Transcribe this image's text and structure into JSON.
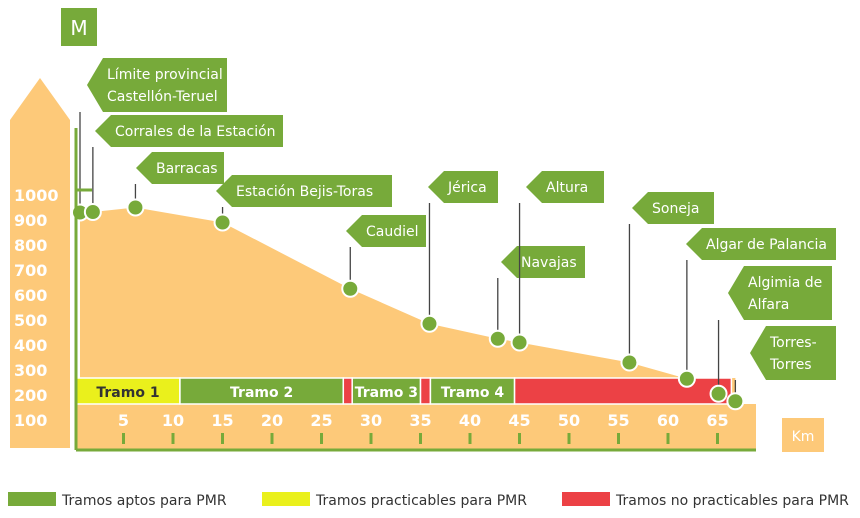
{
  "colors": {
    "profile": "#fdc979",
    "green": "#77aa3a",
    "yellow": "#eaf01c",
    "red": "#ec4145",
    "white": "#ffffff"
  },
  "y_unit": "M",
  "x_unit": "Km",
  "legend": [
    {
      "label": "Tramos aptos para PMR",
      "color": "#77aa3a"
    },
    {
      "label": "Tramos practicables para PMR",
      "color": "#eaf01c"
    },
    {
      "label": "Tramos no practicables para PMR",
      "color": "#ec4145"
    }
  ],
  "chart_data": {
    "type": "area",
    "title": "",
    "xlabel": "Km",
    "ylabel": "M",
    "x_ticks": [
      5,
      10,
      15,
      20,
      25,
      30,
      35,
      40,
      45,
      50,
      55,
      60,
      65
    ],
    "y_ticks": [
      100,
      200,
      300,
      400,
      500,
      600,
      700,
      800,
      900,
      1000
    ],
    "xlim": [
      0,
      67
    ],
    "ylim": [
      0,
      1100
    ],
    "grid": false,
    "legend_position": "bottom",
    "profile": [
      {
        "x": 0,
        "y": 930
      },
      {
        "x": 1.3,
        "y": 932
      },
      {
        "x": 5.6,
        "y": 950
      },
      {
        "x": 14.4,
        "y": 890
      },
      {
        "x": 27.3,
        "y": 625
      },
      {
        "x": 35.3,
        "y": 485
      },
      {
        "x": 42.2,
        "y": 425
      },
      {
        "x": 44.4,
        "y": 410
      },
      {
        "x": 55.5,
        "y": 330
      },
      {
        "x": 61.3,
        "y": 265
      },
      {
        "x": 64.5,
        "y": 205
      },
      {
        "x": 66.2,
        "y": 175
      }
    ],
    "stations": [
      {
        "name": "Límite provincial\nCastellón-Teruel",
        "x": 0,
        "y": 930
      },
      {
        "name": "Corrales de la Estación",
        "x": 1.3,
        "y": 932
      },
      {
        "name": "Barracas",
        "x": 5.6,
        "y": 950
      },
      {
        "name": "Estación Bejis-Toras",
        "x": 14.4,
        "y": 890
      },
      {
        "name": "Caudiel",
        "x": 27.3,
        "y": 625
      },
      {
        "name": "Jérica",
        "x": 35.3,
        "y": 485
      },
      {
        "name": "Navajas",
        "x": 42.2,
        "y": 425
      },
      {
        "name": "Altura",
        "x": 44.4,
        "y": 410
      },
      {
        "name": "Soneja",
        "x": 55.5,
        "y": 330
      },
      {
        "name": "Algar de Palancia",
        "x": 61.3,
        "y": 265
      },
      {
        "name": "Algimia de\nAlfara",
        "x": 64.5,
        "y": 205
      },
      {
        "name": "Torres-\nTorres",
        "x": 66.2,
        "y": 175
      }
    ],
    "segments": [
      {
        "label": "Tramo 1",
        "start": 0,
        "end": 10.5,
        "category": "practicable"
      },
      {
        "label": "Tramo 2",
        "start": 10.5,
        "end": 27,
        "category": "apto"
      },
      {
        "label": "",
        "start": 27,
        "end": 27.9,
        "category": "no_practicable"
      },
      {
        "label": "Tramo 3",
        "start": 27.9,
        "end": 34.8,
        "category": "apto"
      },
      {
        "label": "",
        "start": 34.8,
        "end": 35.8,
        "category": "no_practicable"
      },
      {
        "label": "Tramo 4",
        "start": 35.8,
        "end": 44.3,
        "category": "apto"
      },
      {
        "label": "",
        "start": 44.3,
        "end": 66.2,
        "category": "no_practicable"
      }
    ]
  }
}
